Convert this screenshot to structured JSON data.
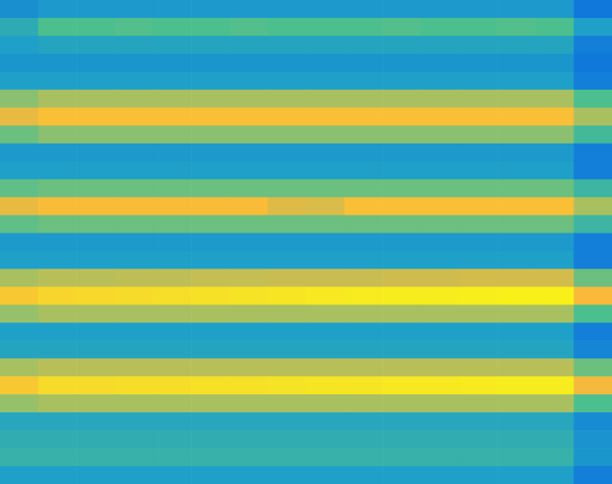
{
  "chart_data": {
    "type": "heatmap",
    "xlim": [
      0,
      16
    ],
    "ylim": [
      0,
      27
    ],
    "tick_labels": false,
    "color_range": [
      0,
      1
    ],
    "cells": [
      [
        0.25,
        0.28,
        0.28,
        0.28,
        0.28,
        0.28,
        0.28,
        0.28,
        0.28,
        0.28,
        0.28,
        0.28,
        0.28,
        0.28,
        0.28,
        0.18
      ],
      [
        0.35,
        0.45,
        0.45,
        0.46,
        0.45,
        0.45,
        0.46,
        0.45,
        0.45,
        0.45,
        0.46,
        0.45,
        0.45,
        0.46,
        0.45,
        0.3
      ],
      [
        0.3,
        0.32,
        0.32,
        0.32,
        0.32,
        0.32,
        0.32,
        0.32,
        0.32,
        0.32,
        0.32,
        0.32,
        0.32,
        0.32,
        0.32,
        0.2
      ],
      [
        0.27,
        0.27,
        0.27,
        0.27,
        0.27,
        0.27,
        0.27,
        0.27,
        0.27,
        0.27,
        0.27,
        0.27,
        0.27,
        0.27,
        0.27,
        0.18
      ],
      [
        0.3,
        0.3,
        0.3,
        0.3,
        0.3,
        0.3,
        0.3,
        0.3,
        0.3,
        0.3,
        0.3,
        0.3,
        0.3,
        0.3,
        0.3,
        0.2
      ],
      [
        0.55,
        0.6,
        0.6,
        0.6,
        0.6,
        0.6,
        0.6,
        0.6,
        0.6,
        0.6,
        0.6,
        0.6,
        0.6,
        0.6,
        0.6,
        0.45
      ],
      [
        0.72,
        0.77,
        0.77,
        0.77,
        0.77,
        0.77,
        0.77,
        0.77,
        0.77,
        0.77,
        0.77,
        0.77,
        0.77,
        0.77,
        0.77,
        0.6
      ],
      [
        0.5,
        0.55,
        0.55,
        0.55,
        0.55,
        0.55,
        0.55,
        0.55,
        0.55,
        0.55,
        0.55,
        0.55,
        0.55,
        0.55,
        0.55,
        0.42
      ],
      [
        0.28,
        0.28,
        0.28,
        0.28,
        0.28,
        0.28,
        0.28,
        0.28,
        0.28,
        0.28,
        0.28,
        0.28,
        0.28,
        0.28,
        0.28,
        0.2
      ],
      [
        0.3,
        0.3,
        0.3,
        0.3,
        0.3,
        0.3,
        0.3,
        0.3,
        0.3,
        0.3,
        0.3,
        0.3,
        0.3,
        0.3,
        0.3,
        0.2
      ],
      [
        0.48,
        0.5,
        0.5,
        0.5,
        0.5,
        0.5,
        0.5,
        0.5,
        0.5,
        0.5,
        0.5,
        0.5,
        0.5,
        0.5,
        0.5,
        0.4
      ],
      [
        0.72,
        0.76,
        0.76,
        0.76,
        0.76,
        0.76,
        0.76,
        0.7,
        0.69,
        0.77,
        0.77,
        0.77,
        0.77,
        0.77,
        0.77,
        0.6
      ],
      [
        0.48,
        0.5,
        0.5,
        0.5,
        0.5,
        0.5,
        0.5,
        0.5,
        0.5,
        0.5,
        0.5,
        0.5,
        0.5,
        0.5,
        0.5,
        0.4
      ],
      [
        0.28,
        0.28,
        0.28,
        0.28,
        0.28,
        0.28,
        0.28,
        0.28,
        0.28,
        0.28,
        0.28,
        0.28,
        0.28,
        0.28,
        0.28,
        0.2
      ],
      [
        0.3,
        0.3,
        0.3,
        0.3,
        0.3,
        0.3,
        0.3,
        0.3,
        0.3,
        0.3,
        0.3,
        0.3,
        0.3,
        0.3,
        0.3,
        0.2
      ],
      [
        0.6,
        0.63,
        0.63,
        0.64,
        0.64,
        0.65,
        0.65,
        0.66,
        0.66,
        0.66,
        0.67,
        0.67,
        0.68,
        0.68,
        0.68,
        0.5
      ],
      [
        0.8,
        0.84,
        0.85,
        0.86,
        0.87,
        0.88,
        0.89,
        0.9,
        0.91,
        0.92,
        0.93,
        0.93,
        0.94,
        0.95,
        0.95,
        0.75
      ],
      [
        0.57,
        0.6,
        0.6,
        0.6,
        0.6,
        0.6,
        0.6,
        0.6,
        0.6,
        0.6,
        0.6,
        0.6,
        0.6,
        0.6,
        0.6,
        0.45
      ],
      [
        0.3,
        0.3,
        0.3,
        0.3,
        0.3,
        0.3,
        0.3,
        0.3,
        0.3,
        0.3,
        0.3,
        0.3,
        0.3,
        0.3,
        0.3,
        0.2
      ],
      [
        0.32,
        0.32,
        0.32,
        0.32,
        0.32,
        0.32,
        0.32,
        0.32,
        0.32,
        0.32,
        0.32,
        0.32,
        0.32,
        0.32,
        0.32,
        0.22
      ],
      [
        0.6,
        0.63,
        0.63,
        0.63,
        0.63,
        0.63,
        0.63,
        0.63,
        0.63,
        0.63,
        0.63,
        0.63,
        0.63,
        0.63,
        0.63,
        0.5
      ],
      [
        0.8,
        0.86,
        0.86,
        0.87,
        0.87,
        0.88,
        0.88,
        0.89,
        0.9,
        0.9,
        0.91,
        0.91,
        0.92,
        0.93,
        0.93,
        0.74
      ],
      [
        0.57,
        0.6,
        0.6,
        0.6,
        0.6,
        0.6,
        0.6,
        0.6,
        0.6,
        0.6,
        0.6,
        0.6,
        0.6,
        0.6,
        0.6,
        0.45
      ],
      [
        0.33,
        0.33,
        0.33,
        0.33,
        0.33,
        0.33,
        0.33,
        0.33,
        0.33,
        0.33,
        0.33,
        0.33,
        0.33,
        0.33,
        0.33,
        0.24
      ],
      [
        0.36,
        0.36,
        0.36,
        0.36,
        0.36,
        0.36,
        0.36,
        0.36,
        0.36,
        0.36,
        0.36,
        0.36,
        0.36,
        0.36,
        0.36,
        0.26
      ],
      [
        0.38,
        0.38,
        0.38,
        0.38,
        0.38,
        0.38,
        0.38,
        0.38,
        0.38,
        0.38,
        0.38,
        0.38,
        0.38,
        0.38,
        0.38,
        0.27
      ],
      [
        0.3,
        0.3,
        0.3,
        0.3,
        0.3,
        0.3,
        0.3,
        0.3,
        0.3,
        0.3,
        0.3,
        0.3,
        0.3,
        0.3,
        0.3,
        0.2
      ]
    ]
  }
}
